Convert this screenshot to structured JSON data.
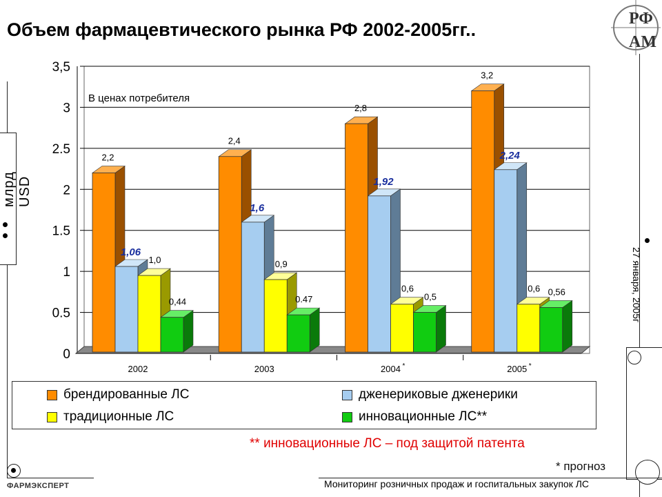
{
  "title": "Объем фармацевтического рынка РФ 2002-2005гг..",
  "ylabel": "млрд USD",
  "side_date": "27 января, 2005г",
  "footnote": "** инновационные ЛС – под защитой патента",
  "forecast_note": "* прогноз",
  "monitor_text": "Мониторинг розничных продаж и госпитальных закупок ЛС",
  "brand": "ФАРМЭКСПЕРТ",
  "logo_text": "РФАМ",
  "colors": {
    "branded": "#ff8c00",
    "generic": "#a6cdf0",
    "traditional": "#ffff00",
    "innovative": "#11cc11"
  },
  "chart_data": {
    "type": "bar",
    "annotation": "В ценах потребителя",
    "categories": [
      "2002",
      "2003",
      "2004",
      "2005"
    ],
    "category_marks": [
      "",
      "",
      "*",
      "*"
    ],
    "ylim": [
      0,
      3.5
    ],
    "yticks": [
      "0",
      "0.5",
      "1",
      "1.5",
      "2",
      "2.5",
      "3",
      "3,5"
    ],
    "grid": true,
    "legend_position": "bottom",
    "series": [
      {
        "name": "брендированные ЛС",
        "values": [
          2.2,
          2.4,
          2.8,
          3.2
        ],
        "labels": [
          "2,2",
          "2,4",
          "2,8",
          "3,2"
        ]
      },
      {
        "name": "дженериковые дженерики",
        "values": [
          1.06,
          1.6,
          1.92,
          2.24
        ],
        "labels": [
          "1,06",
          "1,6",
          "1,92",
          "2,24"
        ]
      },
      {
        "name": "традиционные ЛС",
        "values": [
          0.95,
          0.9,
          0.6,
          0.6
        ],
        "labels": [
          "1,0",
          "0,9",
          "0,6",
          "0,6"
        ]
      },
      {
        "name": "инновационные ЛС**",
        "values": [
          0.44,
          0.47,
          0.5,
          0.56
        ],
        "labels": [
          "0,44",
          "0.47",
          "0,5",
          "0,56"
        ]
      }
    ]
  }
}
